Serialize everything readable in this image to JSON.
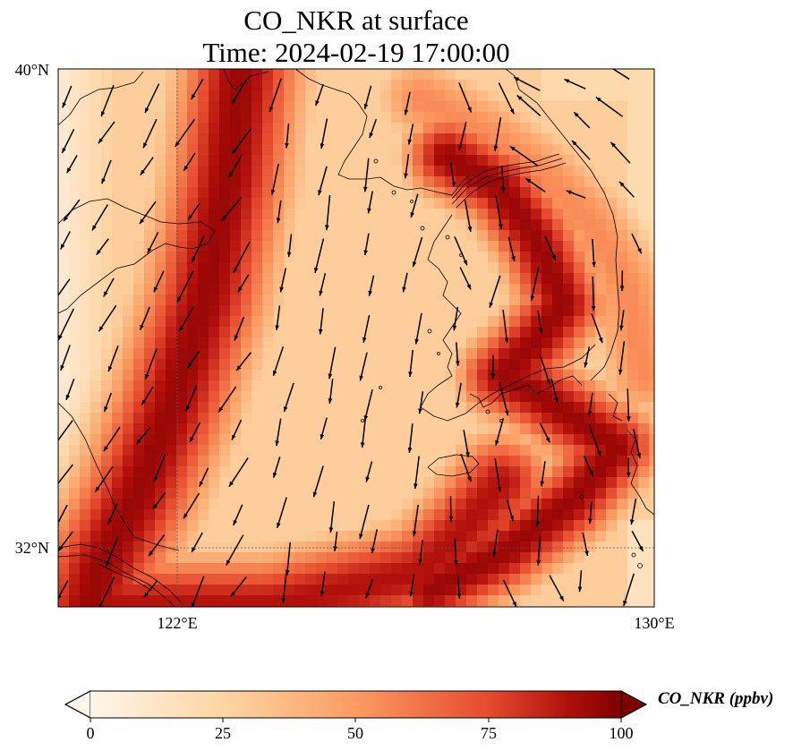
{
  "title": {
    "line1": "CO_NKR at surface",
    "line2": "Time: 2024-02-19 17:00:00"
  },
  "map": {
    "lat_range": [
      31,
      40
    ],
    "lon_range": [
      120,
      130
    ],
    "lat_ticks": [
      "40°N",
      "32°N"
    ],
    "lon_ticks": [
      "122°E",
      "130°E"
    ],
    "gridlines": "dotted",
    "coastlines": true,
    "wind_vectors": true
  },
  "colorbar": {
    "label": "CO_NKR (ppbv)",
    "ticks": [
      "0",
      "25",
      "50",
      "75",
      "100"
    ],
    "min": 0,
    "max": 100,
    "colormap": [
      "#fff5eb",
      "#fdd9a8",
      "#fca56c",
      "#f0603f",
      "#c81b13",
      "#7f0000"
    ],
    "extend": "both"
  },
  "chart_data": {
    "type": "heatmap",
    "title": "CO_NKR at surface",
    "subtitle": "Time: 2024-02-19 17:00:00",
    "variable": "CO_NKR",
    "units": "ppbv",
    "x": {
      "label": "",
      "range": [
        120,
        130
      ],
      "ticks": [
        122,
        130
      ]
    },
    "y": {
      "label": "",
      "range": [
        31,
        40
      ],
      "ticks": [
        32,
        40
      ]
    },
    "features": [
      {
        "name": "high band over Bohai / west Yellow Sea",
        "approx_value": 90
      },
      {
        "name": "high band along Korean west coast",
        "approx_value": 85
      },
      {
        "name": "high band south of Jeju / Yangtze mouth",
        "approx_value": 95
      },
      {
        "name": "central Yellow Sea",
        "approx_value": 30
      }
    ]
  }
}
